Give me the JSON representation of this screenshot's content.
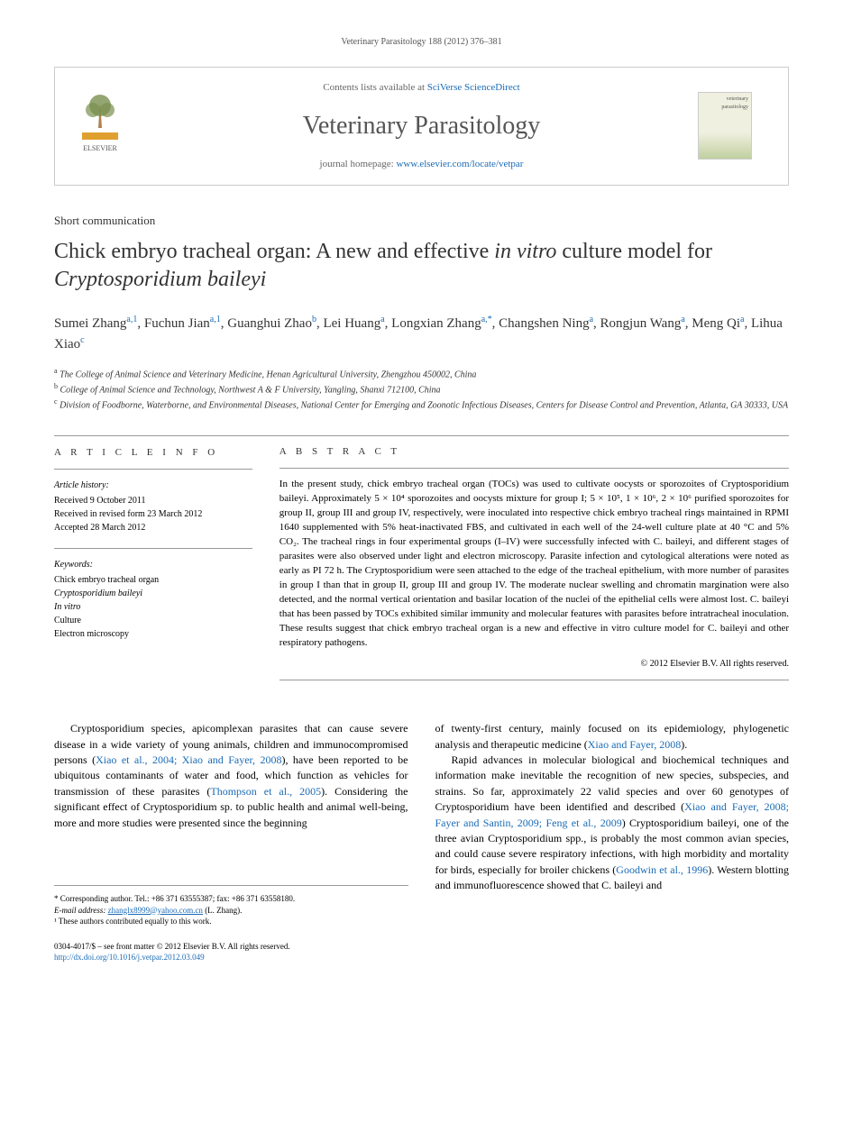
{
  "header_citation": "Veterinary Parasitology 188 (2012) 376–381",
  "masthead": {
    "contents_prefix": "Contents lists available at",
    "contents_link": "SciVerse ScienceDirect",
    "journal_title": "Veterinary Parasitology",
    "homepage_prefix": "journal homepage:",
    "homepage_url": "www.elsevier.com/locate/vetpar",
    "publisher": "ELSEVIER",
    "cover_label_top": "veterinary",
    "cover_label_bottom": "parasitology"
  },
  "article": {
    "type": "Short communication",
    "title_part1": "Chick embryo tracheal organ: A new and effective ",
    "title_italic1": "in vitro",
    "title_part2": " culture model for ",
    "title_italic2": "Cryptosporidium baileyi"
  },
  "authors": [
    {
      "name": "Sumei Zhang",
      "sup": "a,1"
    },
    {
      "name": "Fuchun Jian",
      "sup": "a,1"
    },
    {
      "name": "Guanghui Zhao",
      "sup": "b"
    },
    {
      "name": "Lei Huang",
      "sup": "a"
    },
    {
      "name": "Longxian Zhang",
      "sup": "a,*"
    },
    {
      "name": "Changshen Ning",
      "sup": "a"
    },
    {
      "name": "Rongjun Wang",
      "sup": "a"
    },
    {
      "name": "Meng Qi",
      "sup": "a"
    },
    {
      "name": "Lihua Xiao",
      "sup": "c"
    }
  ],
  "affiliations": [
    {
      "sup": "a",
      "text": "The College of Animal Science and Veterinary Medicine, Henan Agricultural University, Zhengzhou 450002, China"
    },
    {
      "sup": "b",
      "text": "College of Animal Science and Technology, Northwest A & F University, Yangling, Shanxi 712100, China"
    },
    {
      "sup": "c",
      "text": "Division of Foodborne, Waterborne, and Environmental Diseases, National Center for Emerging and Zoonotic Infectious Diseases, Centers for Disease Control and Prevention, Atlanta, GA 30333, USA"
    }
  ],
  "article_info": {
    "label": "A R T I C L E   I N F O",
    "history_label": "Article history:",
    "received": "Received 9 October 2011",
    "revised": "Received in revised form 23 March 2012",
    "accepted": "Accepted 28 March 2012",
    "keywords_label": "Keywords:",
    "keywords": [
      "Chick embryo tracheal organ",
      "Cryptosporidium baileyi",
      "In vitro",
      "Culture",
      "Electron microscopy"
    ]
  },
  "abstract": {
    "label": "A B S T R A C T",
    "text": "In the present study, chick embryo tracheal organ (TOCs) was used to cultivate oocysts or sporozoites of Cryptosporidium baileyi. Approximately 5 × 10⁴ sporozoites and oocysts mixture for group I; 5 × 10⁵, 1 × 10⁶, 2 × 10⁶ purified sporozoites for group II, group III and group IV, respectively, were inoculated into respective chick embryo tracheal rings maintained in RPMI 1640 supplemented with 5% heat-inactivated FBS, and cultivated in each well of the 24-well culture plate at 40 °C and 5% CO₂. The tracheal rings in four experimental groups (I–IV) were successfully infected with C. baileyi, and different stages of parasites were also observed under light and electron microscopy. Parasite infection and cytological alterations were noted as early as PI 72 h. The Cryptosporidium were seen attached to the edge of the tracheal epithelium, with more number of parasites in group I than that in group II, group III and group IV. The moderate nuclear swelling and chromatin margination were also detected, and the normal vertical orientation and basilar location of the nuclei of the epithelial cells were almost lost. C. baileyi that has been passed by TOCs exhibited similar immunity and molecular features with parasites before intratracheal inoculation. These results suggest that chick embryo tracheal organ is a new and effective in vitro culture model for C. baileyi and other respiratory pathogens.",
    "copyright": "© 2012 Elsevier B.V. All rights reserved."
  },
  "body": {
    "col1_p1_a": "Cryptosporidium species, apicomplexan parasites that can cause severe disease in a wide variety of young animals, children and immunocompromised persons (",
    "col1_cite1": "Xiao et al., 2004; Xiao and Fayer, 2008",
    "col1_p1_b": "), have been reported to be ubiquitous contaminants of water and food, which function as vehicles for transmission of these parasites (",
    "col1_cite2": "Thompson et al., 2005",
    "col1_p1_c": "). Considering the significant effect of Cryptosporidium sp. to public health and animal well-being, more and more studies were presented since the beginning",
    "col2_p1_a": "of twenty-first century, mainly focused on its epidemiology, phylogenetic analysis and therapeutic medicine (",
    "col2_cite1": "Xiao and Fayer, 2008",
    "col2_p1_b": ").",
    "col2_p2_a": "Rapid advances in molecular biological and biochemical techniques and information make inevitable the recognition of new species, subspecies, and strains. So far, approximately 22 valid species and over 60 genotypes of Cryptosporidium have been identified and described (",
    "col2_cite2": "Xiao and Fayer, 2008; Fayer and Santin, 2009; Feng et al., 2009",
    "col2_p2_b": ") Cryptosporidium baileyi, one of the three avian Cryptosporidium spp., is probably the most common avian species, and could cause severe respiratory infections, with high morbidity and mortality for birds, especially for broiler chickens (",
    "col2_cite3": "Goodwin et al., 1996",
    "col2_p2_c": "). Western blotting and immunofluorescence showed that C. baileyi and"
  },
  "footnotes": {
    "corresponding": "* Corresponding author. Tel.: +86 371 63555387; fax: +86 371 63558180.",
    "email_label": "E-mail address:",
    "email": "zhanglx8999@yahoo.com.cn",
    "email_who": "(L. Zhang).",
    "equal": "¹ These authors contributed equally to this work."
  },
  "footer": {
    "issn": "0304-4017/$ – see front matter © 2012 Elsevier B.V. All rights reserved.",
    "doi": "http://dx.doi.org/10.1016/j.vetpar.2012.03.049"
  },
  "colors": {
    "link": "#1a6bb5",
    "text": "#000000",
    "muted": "#666666",
    "border": "#cccccc"
  }
}
